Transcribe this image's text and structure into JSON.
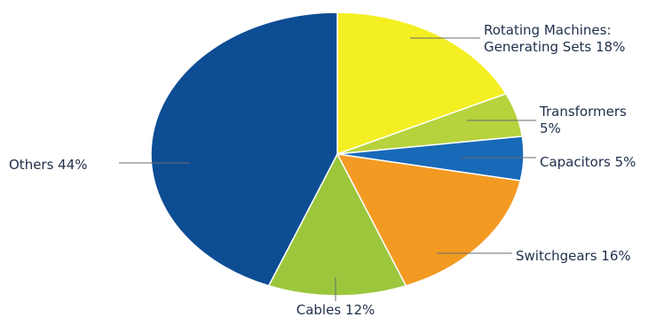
{
  "chart_data": {
    "type": "pie",
    "title": "",
    "legend": "none",
    "slices": [
      {
        "label": "Rotating Machines: Generating Sets 18%",
        "label_lines": [
          "Rotating Machines:",
          "Generating Sets 18%"
        ],
        "value": 18,
        "color": "#f4ef22"
      },
      {
        "label": "Transformers 5%",
        "label_lines": [
          "Transformers",
          "5%"
        ],
        "value": 5,
        "color": "#b6d23c"
      },
      {
        "label": "Capacitors 5%",
        "label_lines": [
          "Capacitors 5%"
        ],
        "value": 5,
        "color": "#1869b8"
      },
      {
        "label": "Switchgears 16%",
        "label_lines": [
          "Switchgears 16%"
        ],
        "value": 16,
        "color": "#f39a23"
      },
      {
        "label": "Cables 12%",
        "label_lines": [
          "Cables 12%"
        ],
        "value": 12,
        "color": "#9cc73c"
      },
      {
        "label": "Others 44%",
        "label_lines": [
          "Others 44%"
        ],
        "value": 44,
        "color": "#0d4d94"
      }
    ]
  }
}
